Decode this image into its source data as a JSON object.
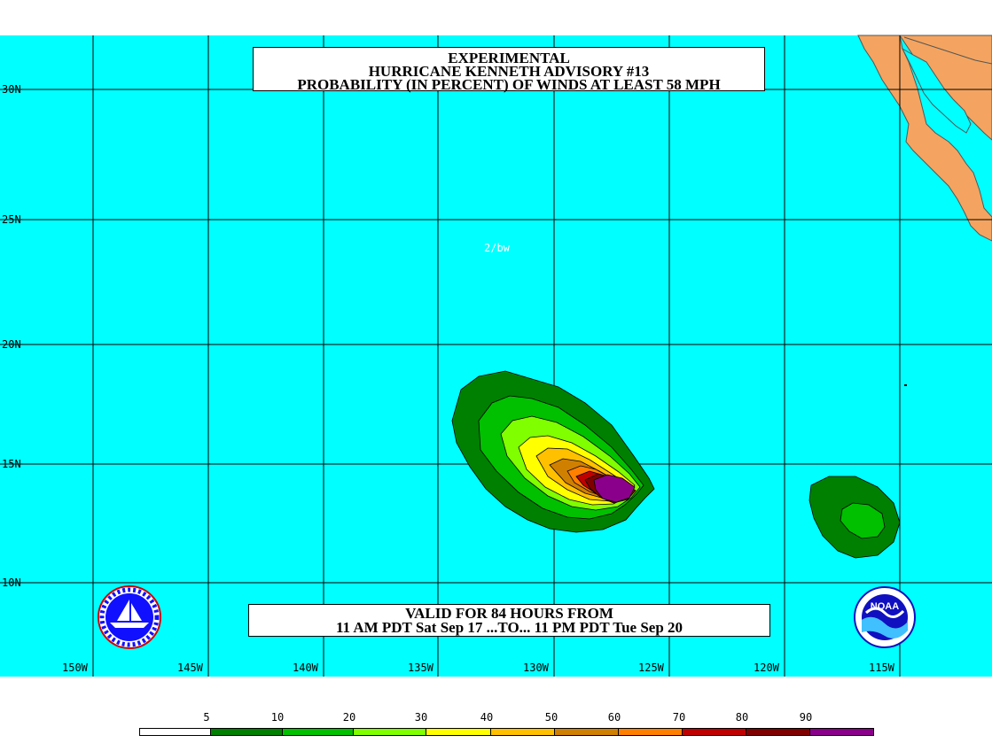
{
  "title": {
    "line1": "EXPERIMENTAL",
    "line2": "HURRICANE KENNETH ADVISORY #13",
    "line3": "PROBABILITY (IN PERCENT) OF WINDS AT LEAST 58 MPH"
  },
  "valid": {
    "line1": "VALID FOR 84 HOURS FROM",
    "line2": "11 AM PDT Sat Sep 17 ...TO... 11 PM PDT Tue Sep 20"
  },
  "analyst": "2/bw",
  "lat_labels": [
    "30N",
    "25N",
    "20N",
    "15N",
    "10N"
  ],
  "lon_labels": [
    "150W",
    "145W",
    "140W",
    "135W",
    "130W",
    "125W",
    "120W",
    "115W"
  ],
  "legend": {
    "values": [
      "5",
      "10",
      "20",
      "30",
      "40",
      "50",
      "60",
      "70",
      "80",
      "90"
    ],
    "colors": [
      "#ffffff",
      "#008000",
      "#00c000",
      "#80ff00",
      "#ffff00",
      "#ffc000",
      "#d08000",
      "#ff8000",
      "#c00000",
      "#800000",
      "#8b008b"
    ]
  },
  "colors": {
    "ocean": "#00ffff",
    "land": "#f4a460"
  },
  "logos": {
    "left": "nws-logo-icon",
    "right": "noaa-logo-icon",
    "right_text": "NOAA"
  }
}
